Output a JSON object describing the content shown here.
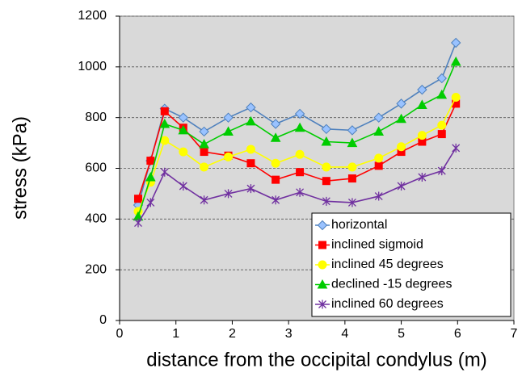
{
  "chart_data": {
    "type": "line",
    "xlabel": "distance from the occipital condylus (m)",
    "ylabel": "stress (kPa)",
    "x": [
      0.33,
      0.55,
      0.8,
      1.13,
      1.5,
      1.93,
      2.33,
      2.77,
      3.2,
      3.67,
      4.13,
      4.6,
      5.0,
      5.37,
      5.72,
      5.97
    ],
    "series": [
      {
        "name": "horizontal",
        "color": "#4f81bd",
        "marker": "diamond",
        "marker_color": "#99c2ff",
        "values": [
          455,
          630,
          835,
          800,
          745,
          800,
          840,
          775,
          815,
          755,
          750,
          800,
          855,
          910,
          955,
          1095
        ]
      },
      {
        "name": "inclined sigmoid",
        "color": "#ff0000",
        "marker": "square",
        "marker_color": "#ff0000",
        "values": [
          480,
          630,
          825,
          760,
          665,
          650,
          620,
          555,
          585,
          550,
          560,
          610,
          665,
          705,
          735,
          855
        ]
      },
      {
        "name": "inclined 45 degrees",
        "color": "#ffff00",
        "marker": "circle",
        "marker_color": "#ffff00",
        "values": [
          430,
          545,
          710,
          665,
          605,
          645,
          675,
          620,
          655,
          605,
          605,
          640,
          685,
          730,
          770,
          880
        ]
      },
      {
        "name": "declined -15 degrees",
        "color": "#00cc00",
        "marker": "triangle",
        "marker_color": "#00cc00",
        "values": [
          410,
          565,
          775,
          750,
          695,
          745,
          785,
          720,
          760,
          705,
          700,
          745,
          795,
          850,
          890,
          1020
        ]
      },
      {
        "name": "inclined 60 degrees",
        "color": "#7030a0",
        "marker": "star",
        "marker_color": "#7030a0",
        "values": [
          385,
          465,
          585,
          530,
          475,
          500,
          520,
          475,
          505,
          470,
          465,
          490,
          530,
          565,
          590,
          680
        ]
      }
    ],
    "xlim": [
      0,
      7
    ],
    "xticks": [
      0,
      1,
      2,
      3,
      4,
      5,
      6,
      7
    ],
    "ylim": [
      0,
      1200
    ],
    "yticks": [
      0,
      200,
      400,
      600,
      800,
      1000,
      1200
    ],
    "grid": true,
    "grid_style": "dashed",
    "plot_background": "#d9d9d9",
    "legend": "lower right"
  }
}
